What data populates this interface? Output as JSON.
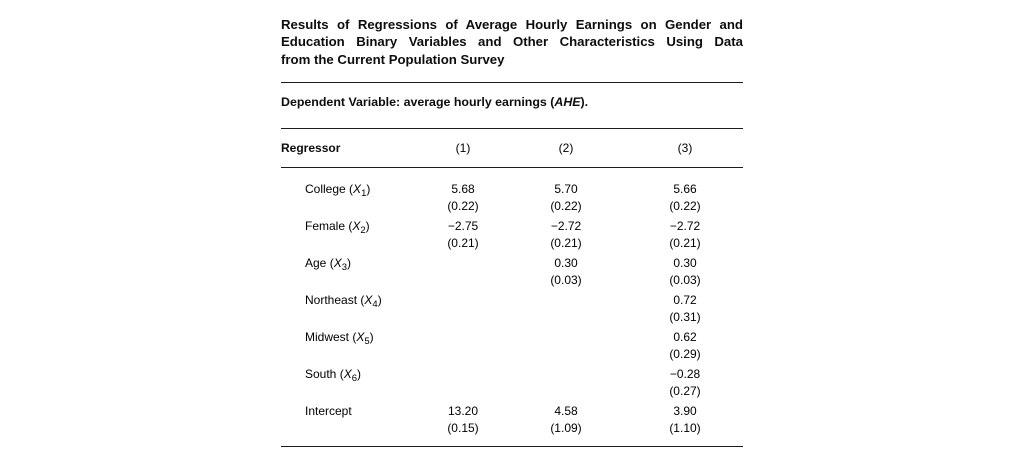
{
  "page": {
    "background": "#ffffff",
    "text_color": "#0d0d0d",
    "rule_color": "#1c1c1c"
  },
  "title": {
    "lines": [
      "Results of Regressions of Average Hourly Earnings on Gender and",
      "Education Binary Variables and Other Characteristics Using Data",
      "from the Current Population Survey"
    ]
  },
  "dependent_variable": {
    "pre": "Dependent Variable: average hourly earnings (",
    "italic": "AHE",
    "post": ")."
  },
  "table": {
    "header": {
      "regressor": "Regressor",
      "columns": [
        "(1)",
        "(2)",
        "(3)"
      ]
    },
    "rows": [
      {
        "label": "College",
        "symbol": "X",
        "subscript": "1",
        "cells": [
          {
            "coef": "5.68",
            "se": "(0.22)"
          },
          {
            "coef": "5.70",
            "se": "(0.22)"
          },
          {
            "coef": "5.66",
            "se": "(0.22)"
          }
        ]
      },
      {
        "label": "Female",
        "symbol": "X",
        "subscript": "2",
        "cells": [
          {
            "coef": "−2.75",
            "se": "(0.21)"
          },
          {
            "coef": "−2.72",
            "se": "(0.21)"
          },
          {
            "coef": "−2.72",
            "se": "(0.21)"
          }
        ]
      },
      {
        "label": "Age",
        "symbol": "X",
        "subscript": "3",
        "cells": [
          {
            "coef": "",
            "se": ""
          },
          {
            "coef": "0.30",
            "se": "(0.03)"
          },
          {
            "coef": "0.30",
            "se": "(0.03)"
          }
        ]
      },
      {
        "label": "Northeast",
        "symbol": "X",
        "subscript": "4",
        "cells": [
          {
            "coef": "",
            "se": ""
          },
          {
            "coef": "",
            "se": ""
          },
          {
            "coef": "0.72",
            "se": "(0.31)"
          }
        ]
      },
      {
        "label": "Midwest",
        "symbol": "X",
        "subscript": "5",
        "cells": [
          {
            "coef": "",
            "se": ""
          },
          {
            "coef": "",
            "se": ""
          },
          {
            "coef": "0.62",
            "se": "(0.29)"
          }
        ]
      },
      {
        "label": "South",
        "symbol": "X",
        "subscript": "6",
        "cells": [
          {
            "coef": "",
            "se": ""
          },
          {
            "coef": "",
            "se": ""
          },
          {
            "coef": "−0.28",
            "se": "(0.27)"
          }
        ]
      },
      {
        "label": "Intercept",
        "symbol": "",
        "subscript": "",
        "cells": [
          {
            "coef": "13.20",
            "se": "(0.15)"
          },
          {
            "coef": "4.58",
            "se": "(1.09)"
          },
          {
            "coef": "3.90",
            "se": "(1.10)"
          }
        ]
      }
    ]
  },
  "chart_data": {
    "type": "table",
    "title": "Results of Regressions of Average Hourly Earnings on Gender and Education Binary Variables and Other Characteristics Using Data from the Current Population Survey",
    "subtitle": "Dependent Variable: average hourly earnings (AHE).",
    "columns": [
      "Regressor",
      "(1)",
      "(2)",
      "(3)"
    ],
    "rows": [
      [
        "College (X1)",
        "5.68 (0.22)",
        "5.70 (0.22)",
        "5.66 (0.22)"
      ],
      [
        "Female (X2)",
        "−2.75 (0.21)",
        "−2.72 (0.21)",
        "−2.72 (0.21)"
      ],
      [
        "Age (X3)",
        "",
        "0.30 (0.03)",
        "0.30 (0.03)"
      ],
      [
        "Northeast (X4)",
        "",
        "",
        "0.72 (0.31)"
      ],
      [
        "Midwest (X5)",
        "",
        "",
        "0.62 (0.29)"
      ],
      [
        "South (X6)",
        "",
        "",
        "−0.28 (0.27)"
      ],
      [
        "Intercept",
        "13.20 (0.15)",
        "4.58 (1.09)",
        "3.90 (1.10)"
      ]
    ]
  }
}
